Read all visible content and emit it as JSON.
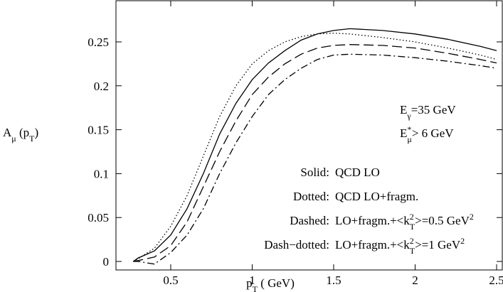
{
  "chart_data": {
    "type": "line",
    "x_label": [
      "p",
      "T",
      "  ( GeV)"
    ],
    "y_label": [
      "A",
      "μ",
      " (p",
      "T",
      ")"
    ],
    "annotations": [
      [
        "E",
        "γ",
        "=35 GeV"
      ],
      [
        "E",
        "*",
        "μ",
        "> 6 GeV"
      ]
    ],
    "xlim": [
      0.164,
      2.535
    ],
    "ylim": [
      -0.0097,
      0.2969
    ],
    "xticks": [
      0.5,
      1,
      1.5,
      2,
      2.5
    ],
    "yticks": [
      0,
      0.05,
      0.1,
      0.15,
      0.2,
      0.25
    ],
    "x": [
      0.27,
      0.3,
      0.4,
      0.5,
      0.6,
      0.7,
      0.8,
      0.9,
      1.0,
      1.1,
      1.2,
      1.3,
      1.4,
      1.5,
      1.6,
      1.8,
      2.0,
      2.2,
      2.4,
      2.5
    ],
    "series": [
      {
        "name": "Solid:",
        "label": [
          "QCD LO"
        ],
        "color": "#000000",
        "dash": "solid",
        "values": [
          0,
          0.004,
          0.012,
          0.03,
          0.06,
          0.1,
          0.145,
          0.18,
          0.207,
          0.226,
          0.24,
          0.252,
          0.259,
          0.263,
          0.265,
          0.263,
          0.259,
          0.253,
          0.245,
          0.24
        ]
      },
      {
        "name": "Dotted:",
        "label": [
          "QCD LO+fragm."
        ],
        "color": "#000000",
        "dash": "dotted",
        "values": [
          0,
          0.003,
          0.015,
          0.04,
          0.075,
          0.12,
          0.165,
          0.2,
          0.225,
          0.24,
          0.25,
          0.256,
          0.259,
          0.26,
          0.259,
          0.255,
          0.25,
          0.243,
          0.235,
          0.23
        ]
      },
      {
        "name": "Dashed:",
        "label": [
          "LO+fragm.+<k",
          "2",
          "T",
          ">=0.5 GeV",
          "2"
        ],
        "color": "#000000",
        "dash": "dashed",
        "values": [
          0,
          0.001,
          0.005,
          0.018,
          0.045,
          0.085,
          0.125,
          0.16,
          0.19,
          0.21,
          0.225,
          0.236,
          0.243,
          0.246,
          0.247,
          0.246,
          0.243,
          0.237,
          0.23,
          0.226
        ]
      },
      {
        "name": "Dash−dotted:",
        "label": [
          "LO+fragm.+<k",
          "2",
          "T",
          ">=1 GeV",
          "2"
        ],
        "color": "#000000",
        "dash": "dashdot",
        "values": [
          0,
          0.0,
          -0.003,
          0.01,
          0.03,
          0.06,
          0.1,
          0.135,
          0.165,
          0.19,
          0.207,
          0.22,
          0.23,
          0.235,
          0.236,
          0.235,
          0.232,
          0.228,
          0.223,
          0.22
        ]
      }
    ]
  }
}
